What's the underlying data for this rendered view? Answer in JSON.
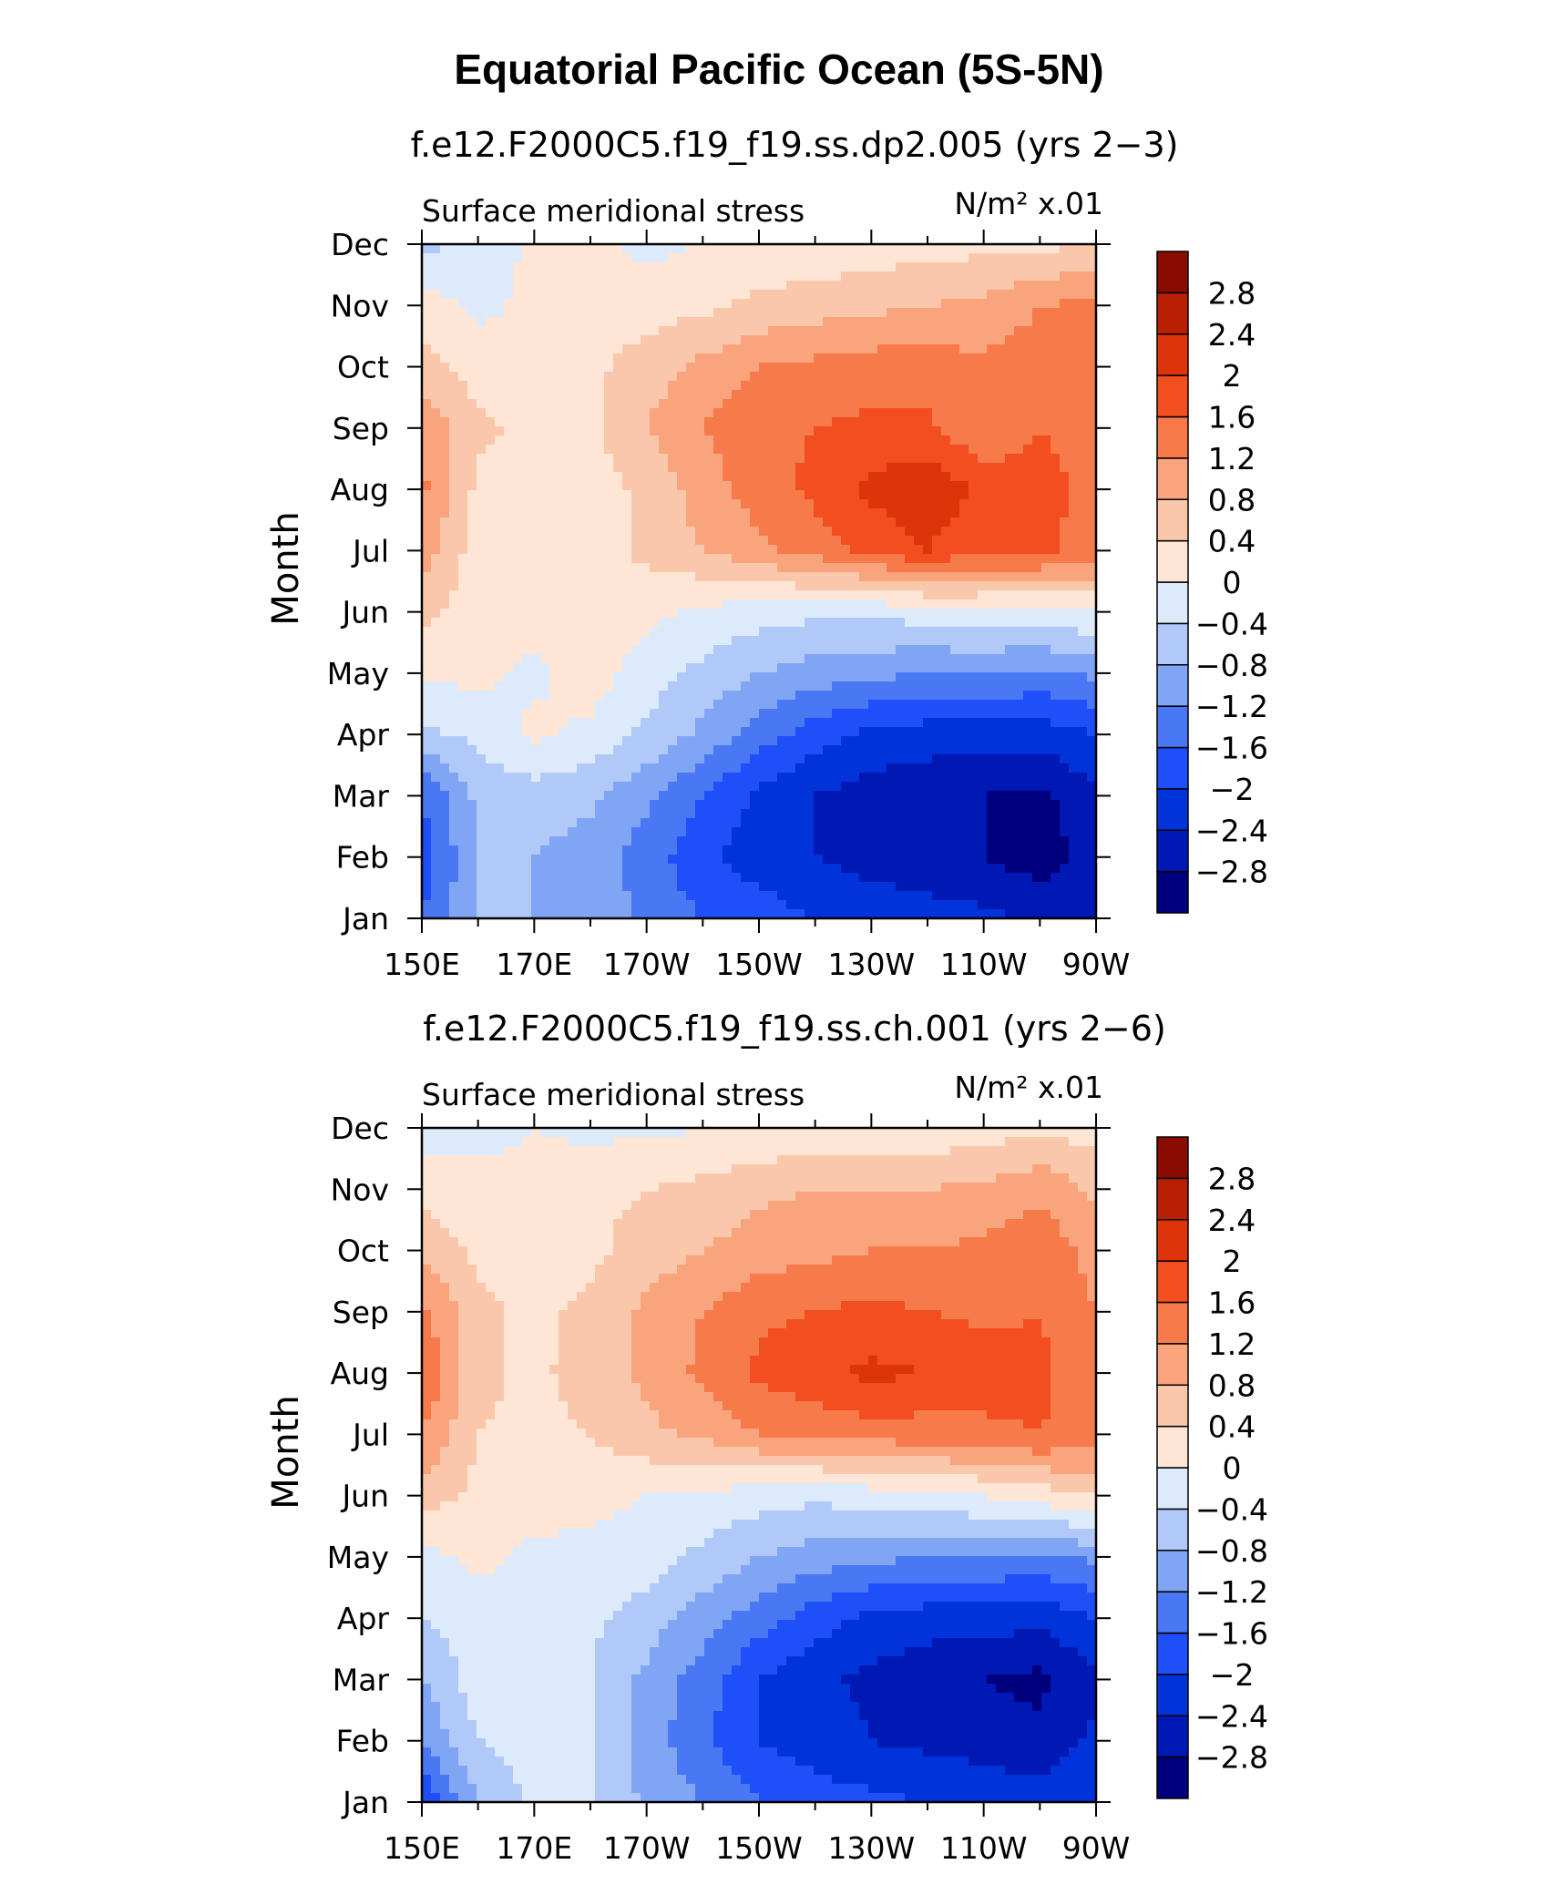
{
  "title": "Equatorial Pacific Ocean (5S-5N)",
  "chart_data": [
    {
      "type": "heatmap",
      "title": "f.e12.F2000C5.f19_f19.ss.dp2.005 (yrs 2−3)",
      "left_label": "Surface meridional stress",
      "right_label": "N/m² x.01",
      "xlabel": "",
      "ylabel": "Month",
      "x_ticks": [
        150,
        170,
        190,
        210,
        230,
        250,
        270
      ],
      "x_tick_labels": [
        "150E",
        "170E",
        "170W",
        "150W",
        "130W",
        "110W",
        "90W"
      ],
      "xlim": [
        150,
        270
      ],
      "y_tick_labels": [
        "Jan",
        "Feb",
        "Mar",
        "Apr",
        "May",
        "Jun",
        "Jul",
        "Aug",
        "Sep",
        "Oct",
        "Nov",
        "Dec"
      ],
      "ylim": [
        1,
        12
      ],
      "x": [
        150,
        160,
        170,
        180,
        190,
        200,
        210,
        220,
        230,
        240,
        250,
        260,
        270
      ],
      "y": [
        1,
        2,
        3,
        4,
        5,
        6,
        7,
        8,
        9,
        10,
        11,
        12
      ],
      "values": [
        [
          -1.6,
          -0.8,
          -0.8,
          -0.9,
          -1.3,
          -1.6,
          -1.8,
          -2.0,
          -2.1,
          -2.2,
          -2.3,
          -2.5,
          -2.4
        ],
        [
          -1.8,
          -0.8,
          -0.8,
          -1.0,
          -1.4,
          -1.9,
          -2.2,
          -2.4,
          -2.6,
          -2.7,
          -2.8,
          -3.0,
          -2.6
        ],
        [
          -1.6,
          -0.7,
          -0.6,
          -0.7,
          -1.1,
          -1.6,
          -2.1,
          -2.4,
          -2.6,
          -2.7,
          -2.8,
          -2.9,
          -2.5
        ],
        [
          -0.5,
          -0.3,
          0.1,
          -0.1,
          -0.5,
          -0.9,
          -1.4,
          -1.8,
          -2.1,
          -2.2,
          -2.2,
          -2.2,
          -2.0
        ],
        [
          0.1,
          0.1,
          -0.1,
          0.2,
          -0.2,
          -0.5,
          -0.8,
          -1.0,
          -1.1,
          -1.2,
          -1.2,
          -1.3,
          -1.1
        ],
        [
          0.5,
          0.2,
          0.2,
          0.2,
          0.1,
          -0.1,
          -0.2,
          -0.3,
          -0.3,
          -0.2,
          -0.1,
          -0.1,
          0.0
        ],
        [
          1.0,
          0.2,
          0.2,
          0.2,
          0.5,
          0.8,
          1.1,
          1.4,
          1.7,
          2.0,
          1.7,
          1.7,
          1.4
        ],
        [
          1.3,
          0.3,
          0.2,
          0.2,
          0.5,
          1.0,
          1.4,
          1.7,
          2.1,
          2.3,
          1.9,
          1.8,
          1.4
        ],
        [
          1.1,
          0.5,
          0.3,
          0.3,
          0.8,
          1.2,
          1.5,
          1.6,
          1.7,
          1.7,
          1.2,
          1.6,
          1.4
        ],
        [
          0.6,
          0.2,
          0.1,
          0.3,
          0.6,
          0.9,
          1.2,
          1.3,
          1.4,
          1.4,
          1.3,
          1.4,
          1.3
        ],
        [
          0.2,
          -0.1,
          0.1,
          0.2,
          0.2,
          0.3,
          0.5,
          0.6,
          0.7,
          0.8,
          0.9,
          1.2,
          1.3
        ],
        [
          -0.5,
          -0.3,
          0.1,
          0.1,
          -0.1,
          0.0,
          0.1,
          0.1,
          0.2,
          0.2,
          0.3,
          0.3,
          0.4
        ]
      ]
    },
    {
      "type": "heatmap",
      "title": "f.e12.F2000C5.f19_f19.ss.ch.001 (yrs 2−6)",
      "left_label": "Surface meridional stress",
      "right_label": "N/m² x.01",
      "xlabel": "",
      "ylabel": "Month",
      "x_ticks": [
        150,
        170,
        190,
        210,
        230,
        250,
        270
      ],
      "x_tick_labels": [
        "150E",
        "170E",
        "170W",
        "150W",
        "130W",
        "110W",
        "90W"
      ],
      "xlim": [
        150,
        270
      ],
      "y_tick_labels": [
        "Jan",
        "Feb",
        "Mar",
        "Apr",
        "May",
        "Jun",
        "Jul",
        "Aug",
        "Sep",
        "Oct",
        "Nov",
        "Dec"
      ],
      "ylim": [
        1,
        12
      ],
      "x": [
        150,
        160,
        170,
        180,
        190,
        200,
        210,
        220,
        230,
        240,
        250,
        260,
        270
      ],
      "y": [
        1,
        2,
        3,
        4,
        5,
        6,
        7,
        8,
        9,
        10,
        11,
        12
      ],
      "values": [
        [
          -2.0,
          -0.8,
          -0.3,
          -0.3,
          -0.9,
          -1.2,
          -1.6,
          -1.8,
          -1.9,
          -2.0,
          -2.1,
          -2.2,
          -2.0
        ],
        [
          -1.2,
          -0.4,
          -0.2,
          -0.4,
          -1.0,
          -1.5,
          -2.0,
          -2.2,
          -2.4,
          -2.5,
          -2.6,
          -2.7,
          -2.3
        ],
        [
          -0.8,
          -0.2,
          -0.1,
          -0.4,
          -0.9,
          -1.4,
          -2.0,
          -2.3,
          -2.5,
          -2.7,
          -2.8,
          -2.9,
          -2.5
        ],
        [
          -0.4,
          -0.2,
          -0.1,
          -0.3,
          -0.6,
          -1.0,
          -1.4,
          -1.8,
          -2.1,
          -2.2,
          -2.2,
          -2.3,
          -2.0
        ],
        [
          -0.1,
          0.1,
          -0.1,
          -0.1,
          -0.2,
          -0.5,
          -0.8,
          -1.0,
          -1.1,
          -1.2,
          -1.2,
          -1.3,
          -1.1
        ],
        [
          0.6,
          0.3,
          0.2,
          0.1,
          0.0,
          -0.1,
          -0.2,
          -0.3,
          -0.2,
          -0.1,
          0.0,
          0.2,
          0.4
        ],
        [
          1.2,
          0.4,
          0.3,
          0.4,
          0.7,
          0.9,
          1.2,
          1.3,
          1.4,
          1.4,
          1.5,
          1.6,
          1.4
        ],
        [
          1.6,
          0.5,
          0.3,
          0.6,
          0.9,
          1.3,
          1.7,
          1.9,
          2.1,
          2.0,
          1.8,
          1.7,
          1.3
        ],
        [
          1.3,
          0.5,
          0.3,
          0.5,
          0.9,
          1.2,
          1.5,
          1.6,
          1.7,
          1.6,
          1.5,
          1.6,
          1.2
        ],
        [
          0.7,
          0.3,
          0.2,
          0.3,
          0.6,
          0.8,
          1.0,
          1.1,
          1.2,
          1.2,
          1.3,
          1.5,
          1.0
        ],
        [
          0.3,
          0.1,
          0.1,
          0.3,
          0.4,
          0.5,
          0.7,
          0.8,
          0.8,
          0.8,
          0.9,
          1.1,
          0.7
        ],
        [
          -0.3,
          -0.1,
          0.0,
          -0.1,
          -0.1,
          0.0,
          0.0,
          0.1,
          0.1,
          0.1,
          0.2,
          0.3,
          0.2
        ]
      ]
    }
  ],
  "colorbar": {
    "levels": [
      -2.8,
      -2.4,
      -2,
      -1.6,
      -1.2,
      -0.8,
      -0.4,
      0,
      0.4,
      0.8,
      1.2,
      1.6,
      2,
      2.4,
      2.8
    ],
    "labels": [
      "−2.8",
      "−2.4",
      "−2",
      "−1.6",
      "−1.2",
      "−0.8",
      "−0.4",
      "0",
      "0.4",
      "0.8",
      "1.2",
      "1.6",
      "2",
      "2.4",
      "2.8"
    ],
    "colors": [
      "#00007f",
      "#0018b4",
      "#0033d9",
      "#1f4ff8",
      "#4a78f4",
      "#80a5f5",
      "#b0c9f8",
      "#dceafc",
      "#fde6d5",
      "#fbc7ab",
      "#f9a47d",
      "#f77a4b",
      "#f24e1f",
      "#de3409",
      "#b91f03",
      "#8a0c00"
    ]
  }
}
